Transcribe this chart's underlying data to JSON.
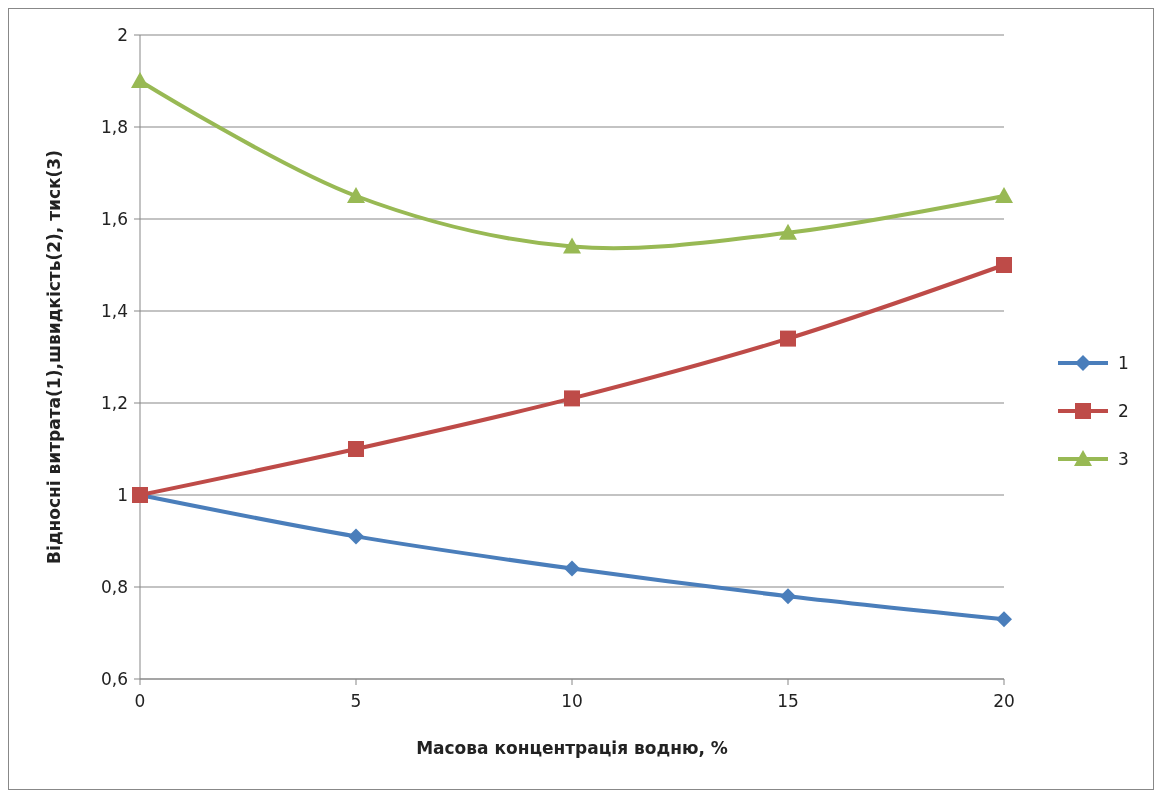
{
  "chart_data": {
    "type": "line",
    "xlabel": "Масова концентрація водню, %",
    "ylabel": "Відносні витрата(1),швидкість(2), тиск(3)",
    "x": [
      0,
      5,
      10,
      15,
      20
    ],
    "series": [
      {
        "name": "1",
        "color": "#4a7ebb",
        "marker": "diamond",
        "values": [
          1,
          0.91,
          0.84,
          0.78,
          0.73
        ]
      },
      {
        "name": "2",
        "color": "#be4b48",
        "marker": "square",
        "values": [
          1,
          1.1,
          1.21,
          1.34,
          1.5
        ]
      },
      {
        "name": "3",
        "color": "#98b954",
        "marker": "triangle",
        "values": [
          1.9,
          1.65,
          1.54,
          1.57,
          1.65
        ]
      }
    ],
    "xlim": [
      0,
      20
    ],
    "xticks": [
      0,
      5,
      10,
      15,
      20
    ],
    "ylim": [
      0.6,
      2
    ],
    "yticks": [
      {
        "value": 0.6,
        "label": "0,6"
      },
      {
        "value": 0.8,
        "label": "0,8"
      },
      1,
      {
        "value": 1.2,
        "label": "1,2"
      },
      {
        "value": 1.4,
        "label": "1,4"
      },
      {
        "value": 1.6,
        "label": "1,6"
      },
      {
        "value": 1.8,
        "label": "1,8"
      },
      2
    ],
    "grid": "y",
    "legend": "right"
  }
}
